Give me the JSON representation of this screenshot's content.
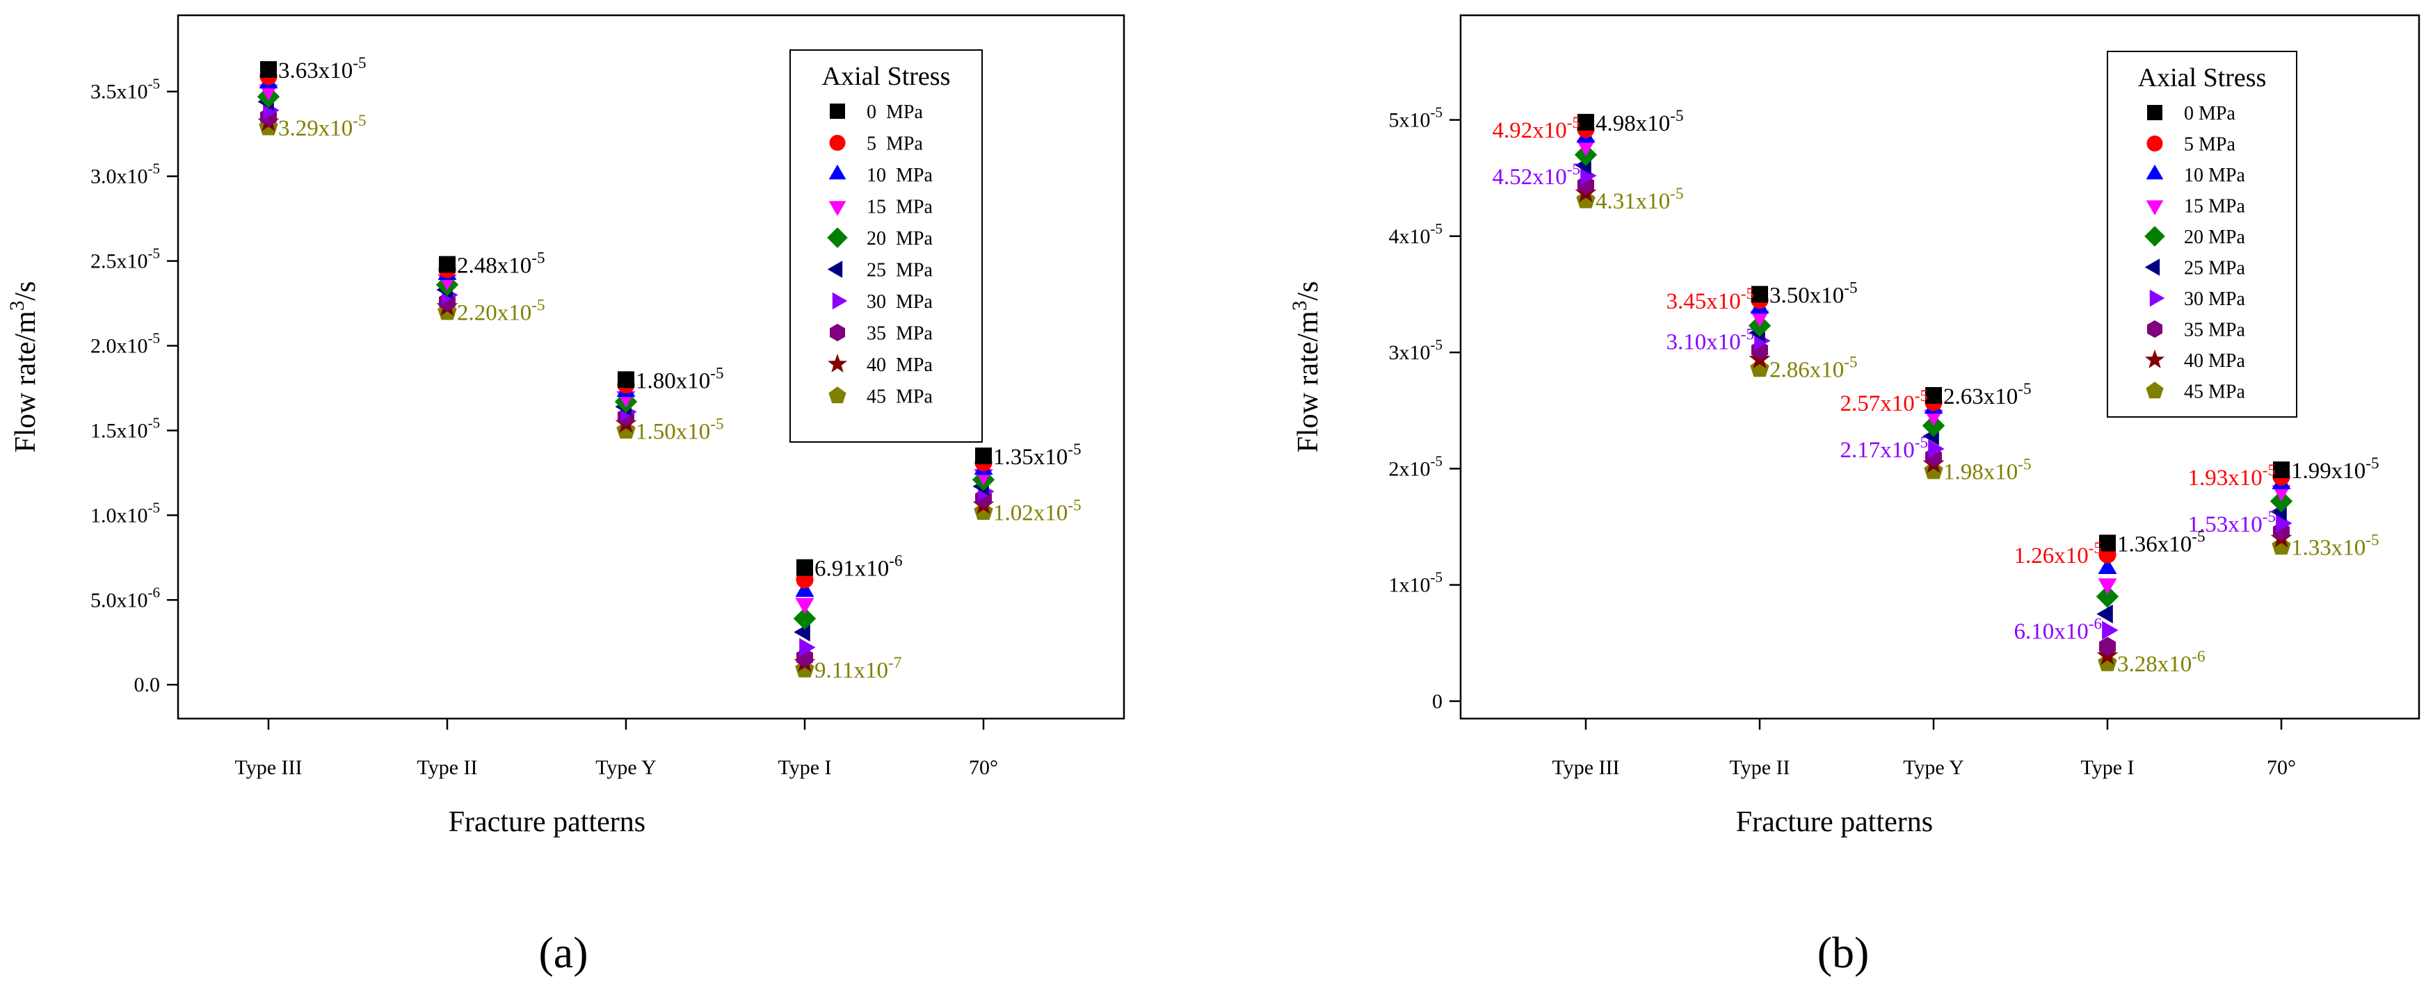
{
  "charts": [
    {
      "id": "a",
      "type": "scatter",
      "panel_label": "(a)",
      "xlabel": "Fracture patterns",
      "ylabel": "Flow rate/m3/s",
      "ylabel_main": "Flow rate/m",
      "ylabel_sup": "3",
      "ylabel_tail": "/s",
      "categories": [
        "Type III",
        "Type II",
        "Type Y",
        "Type I",
        "70°"
      ],
      "ylim": [
        -2e-06,
        3.95e-05
      ],
      "yticks": [
        {
          "value": 0.0,
          "m": "0.0",
          "e": ""
        },
        {
          "value": 5e-06,
          "m": "5.0x10",
          "e": "-6"
        },
        {
          "value": 1e-05,
          "m": "1.0x10",
          "e": "-5"
        },
        {
          "value": 1.5e-05,
          "m": "1.5x10",
          "e": "-5"
        },
        {
          "value": 2e-05,
          "m": "2.0x10",
          "e": "-5"
        },
        {
          "value": 2.5e-05,
          "m": "2.5x10",
          "e": "-5"
        },
        {
          "value": 3e-05,
          "m": "3.0x10",
          "e": "-5"
        },
        {
          "value": 3.5e-05,
          "m": "3.5x10",
          "e": "-5"
        }
      ],
      "series": [
        {
          "name": "0  MPa",
          "values": [
            3.63e-05,
            2.48e-05,
            1.8e-05,
            6.91e-06,
            1.35e-05
          ]
        },
        {
          "name": "5  MPa",
          "values": [
            3.59e-05,
            2.45e-05,
            1.77e-05,
            6.2e-06,
            1.31e-05
          ]
        },
        {
          "name": "10  MPa",
          "values": [
            3.55e-05,
            2.42e-05,
            1.73e-05,
            5.5e-06,
            1.27e-05
          ]
        },
        {
          "name": "15  MPa",
          "values": [
            3.51e-05,
            2.39e-05,
            1.7e-05,
            4.8e-06,
            1.24e-05
          ]
        },
        {
          "name": "20  MPa",
          "values": [
            3.47e-05,
            2.36e-05,
            1.67e-05,
            3.9e-06,
            1.21e-05
          ]
        },
        {
          "name": "25  MPa",
          "values": [
            3.44e-05,
            2.33e-05,
            1.64e-05,
            3.1e-06,
            1.17e-05
          ]
        },
        {
          "name": "30  MPa",
          "values": [
            3.39e-05,
            2.3e-05,
            1.61e-05,
            2.2e-06,
            1.14e-05
          ]
        },
        {
          "name": "35  MPa",
          "values": [
            3.35e-05,
            2.26e-05,
            1.58e-05,
            1.6e-06,
            1.1e-05
          ]
        },
        {
          "name": "40  MPa",
          "values": [
            3.32e-05,
            2.23e-05,
            1.54e-05,
            1.3e-06,
            1.06e-05
          ]
        },
        {
          "name": "45  MPa",
          "values": [
            3.29e-05,
            2.2e-05,
            1.5e-05,
            9.11e-07,
            1.02e-05
          ]
        }
      ],
      "annotations": [
        {
          "cat": 0,
          "value": 3.63e-05,
          "m": "3.63x10",
          "e": "-5",
          "color": "#000000",
          "side": "right"
        },
        {
          "cat": 0,
          "value": 3.29e-05,
          "m": "3.29x10",
          "e": "-5",
          "color": "#808000",
          "side": "right"
        },
        {
          "cat": 1,
          "value": 2.48e-05,
          "m": "2.48x10",
          "e": "-5",
          "color": "#000000",
          "side": "right"
        },
        {
          "cat": 1,
          "value": 2.2e-05,
          "m": "2.20x10",
          "e": "-5",
          "color": "#808000",
          "side": "right"
        },
        {
          "cat": 2,
          "value": 1.8e-05,
          "m": "1.80x10",
          "e": "-5",
          "color": "#000000",
          "side": "right"
        },
        {
          "cat": 2,
          "value": 1.5e-05,
          "m": "1.50x10",
          "e": "-5",
          "color": "#808000",
          "side": "right"
        },
        {
          "cat": 3,
          "value": 6.91e-06,
          "m": "6.91x10",
          "e": "-6",
          "color": "#000000",
          "side": "right"
        },
        {
          "cat": 3,
          "value": 9.11e-07,
          "m": "9.11x10",
          "e": "-7",
          "color": "#808000",
          "side": "right"
        },
        {
          "cat": 4,
          "value": 1.35e-05,
          "m": "1.35x10",
          "e": "-5",
          "color": "#000000",
          "side": "right"
        },
        {
          "cat": 4,
          "value": 1.02e-05,
          "m": "1.02x10",
          "e": "-5",
          "color": "#808000",
          "side": "right"
        }
      ],
      "legend": {
        "title": "Axial Stress",
        "position": "top-right"
      }
    },
    {
      "id": "b",
      "type": "scatter",
      "panel_label": "(b)",
      "xlabel": "Fracture patterns",
      "ylabel": "Flow rate/m3/s",
      "ylabel_main": "Flow rate/m",
      "ylabel_sup": "3",
      "ylabel_tail": "/s",
      "categories": [
        "Type III",
        "Type II",
        "Type Y",
        "Type I",
        "70°"
      ],
      "ylim": [
        -1.5e-06,
        5.9e-05
      ],
      "yticks": [
        {
          "value": 0.0,
          "m": "0",
          "e": ""
        },
        {
          "value": 1e-05,
          "m": "1x10",
          "e": "-5"
        },
        {
          "value": 2e-05,
          "m": "2x10",
          "e": "-5"
        },
        {
          "value": 3e-05,
          "m": "3x10",
          "e": "-5"
        },
        {
          "value": 4e-05,
          "m": "4x10",
          "e": "-5"
        },
        {
          "value": 5e-05,
          "m": "5x10",
          "e": "-5"
        }
      ],
      "series": [
        {
          "name": "0 MPa",
          "values": [
            4.98e-05,
            3.5e-05,
            2.63e-05,
            1.36e-05,
            1.99e-05
          ]
        },
        {
          "name": "5 MPa",
          "values": [
            4.92e-05,
            3.45e-05,
            2.57e-05,
            1.26e-05,
            1.93e-05
          ]
        },
        {
          "name": "10 MPa",
          "values": [
            4.85e-05,
            3.38e-05,
            2.52e-05,
            1.14e-05,
            1.87e-05
          ]
        },
        {
          "name": "15 MPa",
          "values": [
            4.78e-05,
            3.31e-05,
            2.46e-05,
            1.01e-05,
            1.81e-05
          ]
        },
        {
          "name": "20 MPa",
          "values": [
            4.7e-05,
            3.23e-05,
            2.37e-05,
            9e-06,
            1.72e-05
          ]
        },
        {
          "name": "25 MPa",
          "values": [
            4.61e-05,
            3.17e-05,
            2.28e-05,
            7.5e-06,
            1.63e-05
          ]
        },
        {
          "name": "30 MPa",
          "values": [
            4.52e-05,
            3.1e-05,
            2.17e-05,
            6.1e-06,
            1.53e-05
          ]
        },
        {
          "name": "35 MPa",
          "values": [
            4.44e-05,
            3.02e-05,
            2.1e-05,
            4.7e-06,
            1.46e-05
          ]
        },
        {
          "name": "40 MPa",
          "values": [
            4.37e-05,
            2.94e-05,
            2.04e-05,
            3.9e-06,
            1.4e-05
          ]
        },
        {
          "name": "45 MPa",
          "values": [
            4.31e-05,
            2.86e-05,
            1.98e-05,
            3.28e-06,
            1.33e-05
          ]
        }
      ],
      "annotations": [
        {
          "cat": 0,
          "value": 4.98e-05,
          "m": "4.98x10",
          "e": "-5",
          "color": "#000000",
          "side": "right"
        },
        {
          "cat": 0,
          "value": 4.92e-05,
          "m": "4.92x10",
          "e": "-5",
          "color": "#ff0000",
          "side": "left"
        },
        {
          "cat": 0,
          "value": 4.52e-05,
          "m": "4.52x10",
          "e": "-5",
          "color": "#8b00ff",
          "side": "left"
        },
        {
          "cat": 0,
          "value": 4.31e-05,
          "m": "4.31x10",
          "e": "-5",
          "color": "#808000",
          "side": "right"
        },
        {
          "cat": 1,
          "value": 3.5e-05,
          "m": "3.50x10",
          "e": "-5",
          "color": "#000000",
          "side": "right"
        },
        {
          "cat": 1,
          "value": 3.45e-05,
          "m": "3.45x10",
          "e": "-5",
          "color": "#ff0000",
          "side": "left"
        },
        {
          "cat": 1,
          "value": 3.1e-05,
          "m": "3.10x10",
          "e": "-5",
          "color": "#8b00ff",
          "side": "left"
        },
        {
          "cat": 1,
          "value": 2.86e-05,
          "m": "2.86x10",
          "e": "-5",
          "color": "#808000",
          "side": "right"
        },
        {
          "cat": 2,
          "value": 2.63e-05,
          "m": "2.63x10",
          "e": "-5",
          "color": "#000000",
          "side": "right"
        },
        {
          "cat": 2,
          "value": 2.57e-05,
          "m": "2.57x10",
          "e": "-5",
          "color": "#ff0000",
          "side": "left"
        },
        {
          "cat": 2,
          "value": 2.17e-05,
          "m": "2.17x10",
          "e": "-5",
          "color": "#8b00ff",
          "side": "left"
        },
        {
          "cat": 2,
          "value": 1.98e-05,
          "m": "1.98x10",
          "e": "-5",
          "color": "#808000",
          "side": "right"
        },
        {
          "cat": 3,
          "value": 1.36e-05,
          "m": "1.36x10",
          "e": "-5",
          "color": "#000000",
          "side": "right"
        },
        {
          "cat": 3,
          "value": 1.26e-05,
          "m": "1.26x10",
          "e": "-5",
          "color": "#ff0000",
          "side": "left"
        },
        {
          "cat": 3,
          "value": 6.1e-06,
          "m": "6.10x10",
          "e": "-6",
          "color": "#8b00ff",
          "side": "left"
        },
        {
          "cat": 3,
          "value": 3.28e-06,
          "m": "3.28x10",
          "e": "-6",
          "color": "#808000",
          "side": "right"
        },
        {
          "cat": 4,
          "value": 1.99e-05,
          "m": "1.99x10",
          "e": "-5",
          "color": "#000000",
          "side": "right"
        },
        {
          "cat": 4,
          "value": 1.93e-05,
          "m": "1.93x10",
          "e": "-5",
          "color": "#ff0000",
          "side": "left"
        },
        {
          "cat": 4,
          "value": 1.53e-05,
          "m": "1.53x10",
          "e": "-5",
          "color": "#8b00ff",
          "side": "left"
        },
        {
          "cat": 4,
          "value": 1.33e-05,
          "m": "1.33x10",
          "e": "-5",
          "color": "#808000",
          "side": "right"
        }
      ],
      "legend": {
        "title": "Axial Stress",
        "position": "top-right"
      }
    }
  ],
  "series_styles": [
    {
      "marker": "square-icon",
      "color": "#000000"
    },
    {
      "marker": "circle-icon",
      "color": "#ff0000"
    },
    {
      "marker": "triangle-up-icon",
      "color": "#0000ff"
    },
    {
      "marker": "triangle-down-icon",
      "color": "#ff00ff"
    },
    {
      "marker": "diamond-icon",
      "color": "#008000"
    },
    {
      "marker": "triangle-left-icon",
      "color": "#000080"
    },
    {
      "marker": "triangle-right-icon",
      "color": "#8b00ff"
    },
    {
      "marker": "hexagon-icon",
      "color": "#800080"
    },
    {
      "marker": "star-icon",
      "color": "#800000"
    },
    {
      "marker": "pentagon-icon",
      "color": "#808000"
    }
  ]
}
